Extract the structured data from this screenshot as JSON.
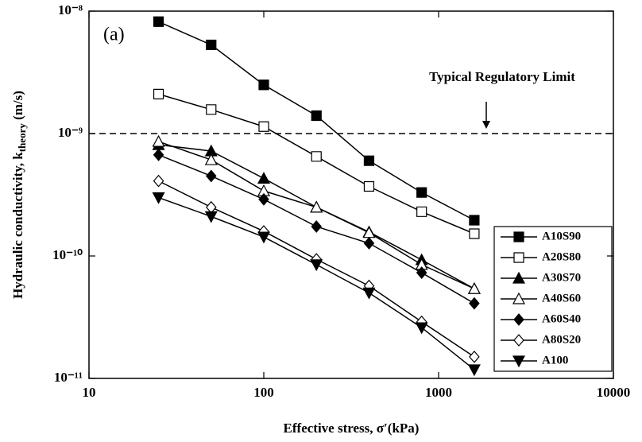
{
  "chart_data": {
    "type": "line",
    "panel_label": "(a)",
    "x_label": "Effective stress, σ′(kPa)",
    "y_label": "Hydraulic conductivity, k",
    "y_label_sub": "theory",
    "y_label_unit": " (m/s)",
    "annotation": "Typical Regulatory Limit",
    "hline": 1e-09,
    "x_log": true,
    "y_log": true,
    "xlim": [
      10,
      10000
    ],
    "xticks": [
      10,
      100,
      1000,
      10000
    ],
    "ylim": [
      1e-11,
      1e-08
    ],
    "yticks": [
      {
        "value": 1e-11,
        "label": "10⁻¹¹"
      },
      {
        "value": 1e-10,
        "label": "10⁻¹⁰"
      },
      {
        "value": 1e-09,
        "label": "10⁻⁹"
      },
      {
        "value": 1e-08,
        "label": "10⁻⁸"
      }
    ],
    "legend": "lower right",
    "x": [
      25,
      50,
      100,
      200,
      400,
      800,
      1600
    ],
    "series": [
      {
        "name": "A10S90",
        "color": "#000000",
        "marker": "square",
        "filled": true,
        "values": [
          8.2e-09,
          5.3e-09,
          2.5e-09,
          1.4e-09,
          6e-10,
          3.3e-10,
          1.96e-10
        ]
      },
      {
        "name": "A20S80",
        "color": "#000000",
        "marker": "square",
        "filled": false,
        "values": [
          2.1e-09,
          1.57e-09,
          1.14e-09,
          6.5e-10,
          3.7e-10,
          2.3e-10,
          1.52e-10
        ]
      },
      {
        "name": "A30S70",
        "color": "#000000",
        "marker": "triangle-up",
        "filled": true,
        "values": [
          8.1e-10,
          7.2e-10,
          4.3e-10,
          2.5e-10,
          1.57e-10,
          9.3e-11,
          5.4e-11
        ]
      },
      {
        "name": "A40S60",
        "color": "#000000",
        "marker": "triangle-up",
        "filled": false,
        "values": [
          8.6e-10,
          6.1e-10,
          3.4e-10,
          2.5e-10,
          1.55e-10,
          8.5e-11,
          5.4e-11
        ]
      },
      {
        "name": "A60S40",
        "color": "#000000",
        "marker": "diamond",
        "filled": true,
        "values": [
          6.7e-10,
          4.5e-10,
          2.9e-10,
          1.74e-10,
          1.27e-10,
          7.3e-11,
          4.1e-11
        ]
      },
      {
        "name": "A80S20",
        "color": "#000000",
        "marker": "diamond",
        "filled": false,
        "values": [
          4.1e-10,
          2.5e-10,
          1.59e-10,
          9.4e-11,
          5.7e-11,
          2.9e-11,
          1.5e-11
        ]
      },
      {
        "name": "A100",
        "color": "#000000",
        "marker": "triangle-down",
        "filled": true,
        "values": [
          3e-10,
          2.1e-10,
          1.43e-10,
          8.5e-11,
          5e-11,
          2.6e-11,
          1.18e-11
        ]
      }
    ]
  }
}
